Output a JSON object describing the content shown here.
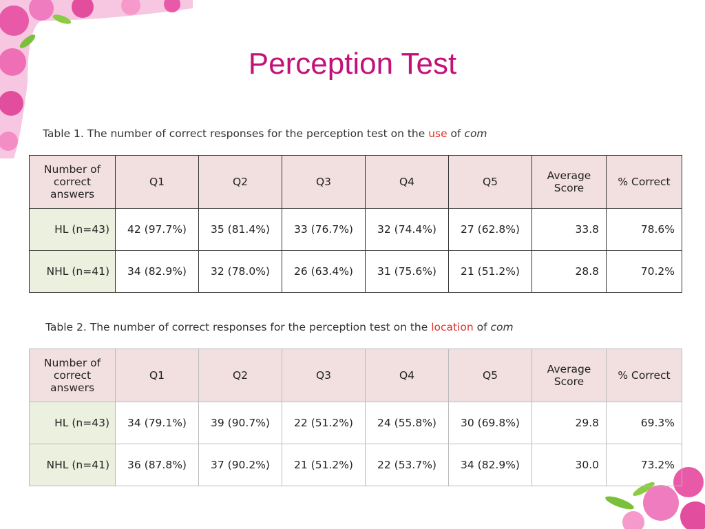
{
  "title": "Perception Test",
  "tables": [
    {
      "caption": [
        "Table 1. The number of correct responses for the perception test on the ",
        "use",
        " of ",
        "com"
      ],
      "header": [
        "Number of correct answers",
        "Q1",
        "Q2",
        "Q3",
        "Q4",
        "Q5",
        "Average Score",
        "% Correct"
      ],
      "rows": [
        [
          "HL (n=43)",
          "42 (97.7%)",
          "35 (81.4%)",
          "33 (76.7%)",
          "32 (74.4%)",
          "27 (62.8%)",
          "33.8",
          "78.6%"
        ],
        [
          "NHL (n=41)",
          "34 (82.9%)",
          "32 (78.0%)",
          "26 (63.4%)",
          "31 (75.6%)",
          "21 (51.2%)",
          "28.8",
          "70.2%"
        ]
      ]
    },
    {
      "caption": [
        "Table 2. The number of correct responses for the perception test on the ",
        "location",
        " of ",
        "com"
      ],
      "header": [
        "Number of correct answers",
        "Q1",
        "Q2",
        "Q3",
        "Q4",
        "Q5",
        "Average Score",
        "% Correct"
      ],
      "rows": [
        [
          "HL (n=43)",
          "34 (79.1%)",
          "39 (90.7%)",
          "22 (51.2%)",
          "24 (55.8%)",
          "30 (69.8%)",
          "29.8",
          "69.3%"
        ],
        [
          "NHL (n=41)",
          "36 (87.8%)",
          "37 (90.2%)",
          "21 (51.2%)",
          "22 (53.7%)",
          "34 (82.9%)",
          "30.0",
          "73.2%"
        ]
      ]
    }
  ]
}
